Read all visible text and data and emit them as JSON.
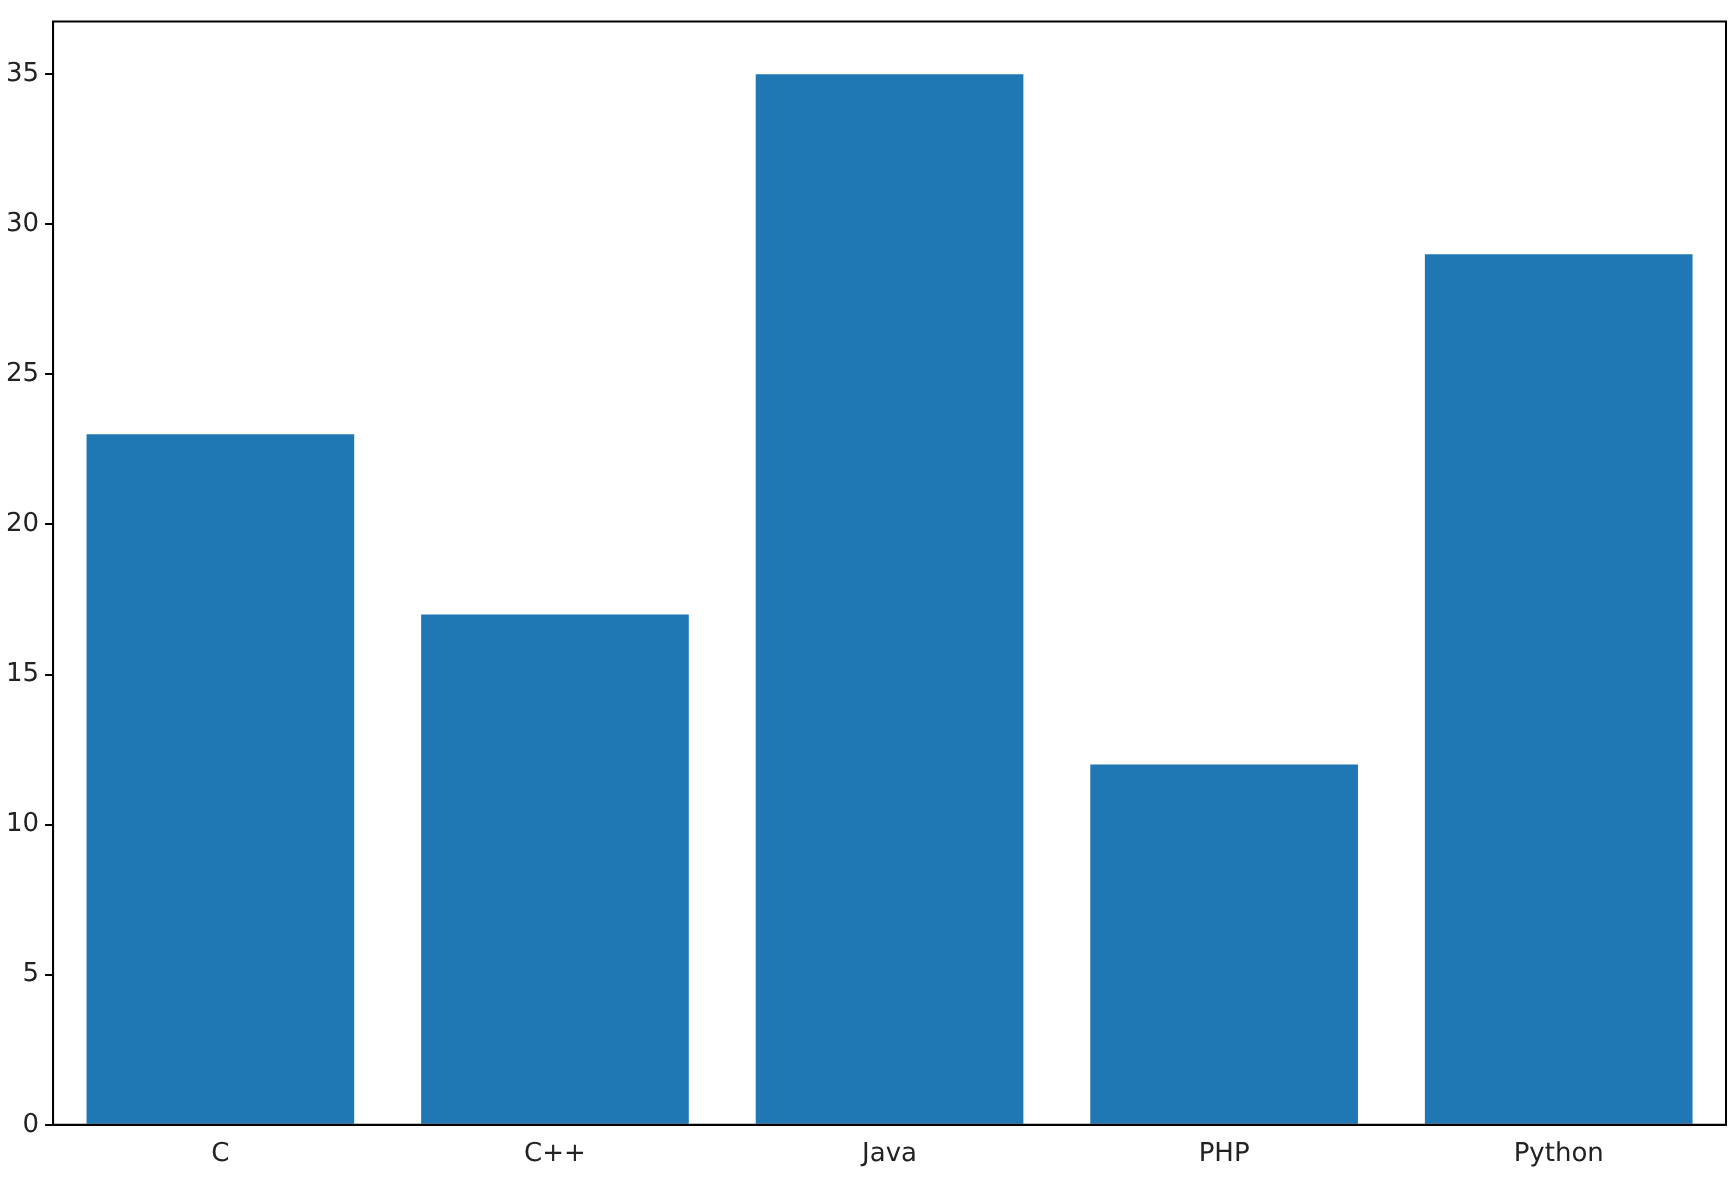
{
  "chart_data": {
    "type": "bar",
    "categories": [
      "C",
      "C++",
      "Java",
      "PHP",
      "Python"
    ],
    "values": [
      23,
      17,
      35,
      12,
      29
    ],
    "color": "#1f77b4",
    "ylim": [
      0,
      36.75
    ],
    "yticks": [
      0,
      5,
      10,
      15,
      20,
      25,
      30,
      35
    ],
    "grid": false,
    "legend": false
  }
}
